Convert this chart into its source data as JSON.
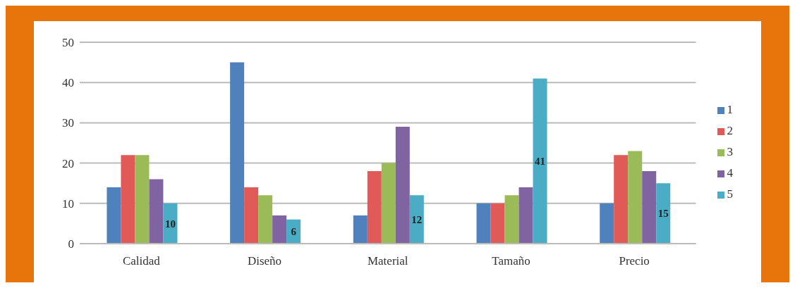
{
  "chart_data": {
    "type": "bar",
    "categories": [
      "Calidad",
      "Diseño",
      "Material",
      "Tamaño",
      "Precio"
    ],
    "series": [
      {
        "name": "1",
        "color": "#4f81bd",
        "values": [
          14,
          45,
          7,
          10,
          10
        ]
      },
      {
        "name": "2",
        "color": "#e05a57",
        "values": [
          22,
          14,
          18,
          10,
          22
        ]
      },
      {
        "name": "3",
        "color": "#9bbb59",
        "values": [
          22,
          12,
          20,
          12,
          23
        ]
      },
      {
        "name": "4",
        "color": "#8064a2",
        "values": [
          16,
          7,
          29,
          14,
          18
        ]
      },
      {
        "name": "5",
        "color": "#4bacc6",
        "values": [
          10,
          6,
          12,
          41,
          15
        ],
        "value_labels": [
          "10",
          "6",
          "12",
          "41",
          "15"
        ]
      }
    ],
    "ylim": [
      0,
      50
    ],
    "yticks": [
      0,
      10,
      20,
      30,
      40,
      50
    ],
    "grid": "y",
    "legend": "right"
  }
}
